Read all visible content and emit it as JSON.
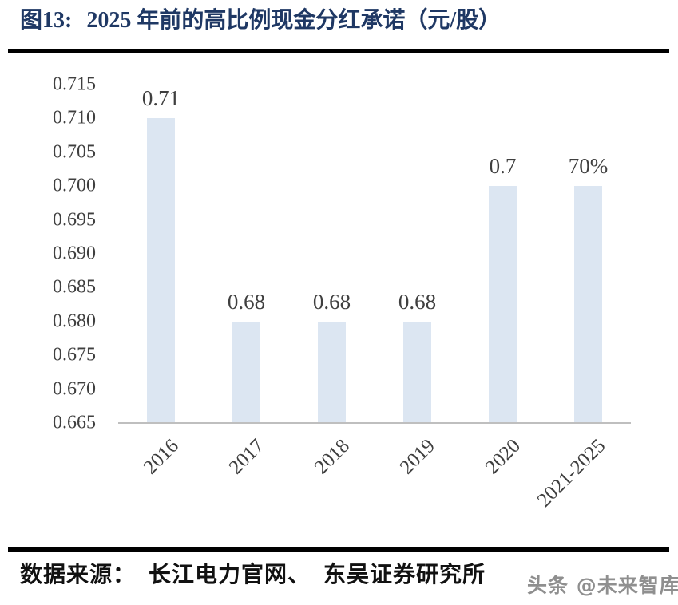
{
  "header": {
    "figure_label": "图13:",
    "title": "2025 年前的高比例现金分红承诺（元/股）"
  },
  "chart_data": {
    "type": "bar",
    "categories": [
      "2016",
      "2017",
      "2018",
      "2019",
      "2020",
      "2021-2025"
    ],
    "values": [
      0.71,
      0.68,
      0.68,
      0.68,
      0.7,
      0.7
    ],
    "data_labels": [
      "0.71",
      "0.68",
      "0.68",
      "0.68",
      "0.7",
      "70%"
    ],
    "title": "2025 年前的高比例现金分红承诺（元/股）",
    "xlabel": "",
    "ylabel": "",
    "ylim": [
      0.665,
      0.715
    ],
    "ytick_step": 0.005,
    "yticks": [
      "0.715",
      "0.710",
      "0.705",
      "0.700",
      "0.695",
      "0.690",
      "0.685",
      "0.680",
      "0.675",
      "0.670",
      "0.665"
    ],
    "grid": false,
    "legend": false,
    "bar_color": "#dce6f2",
    "axis_line_color": "#bfbfbf",
    "label_color": "#3f3f3f"
  },
  "footer": {
    "source": "数据来源：  长江电力官网、  东吴证券研究所",
    "watermark": "头条 @未来智库"
  },
  "colors": {
    "title": "#1f3864",
    "rule": "#000000"
  }
}
